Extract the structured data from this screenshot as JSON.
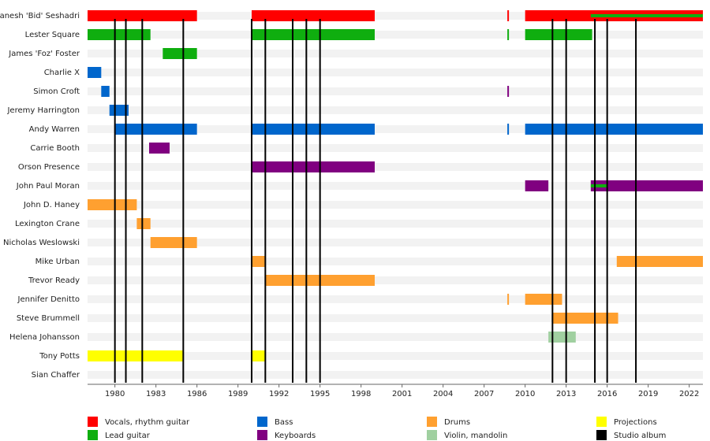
{
  "chart_data": {
    "type": "timeline",
    "categories": [
      "Ganesh 'Bid' Seshadri",
      "Lester Square",
      "James 'Foz' Foster",
      "Charlie X",
      "Simon Croft",
      "Jeremy Harrington",
      "Andy Warren",
      "Carrie Booth",
      "Orson Presence",
      "John Paul Moran",
      "John D. Haney",
      "Lexington Crane",
      "Nicholas Weslowski",
      "Mike Urban",
      "Trevor Ready",
      "Jennifer Denitto",
      "Steve Brummell",
      "Helena Johansson",
      "Tony Potts",
      "Sian Chaffer"
    ],
    "xlim": [
      1978,
      2023
    ],
    "xticks": [
      1980,
      1983,
      1986,
      1989,
      1992,
      1995,
      1998,
      2001,
      2004,
      2007,
      2010,
      2013,
      2016,
      2019,
      2022
    ],
    "series": [
      {
        "name": "Vocals, rhythm guitar",
        "color": "#ff0000",
        "values": [
          [
            [
              1978,
              1986
            ],
            [
              1990,
              1999
            ],
            [
              2008.7,
              2008.8
            ],
            [
              2010,
              2023
            ]
          ],
          null,
          null,
          null,
          null,
          null,
          null,
          null,
          null,
          null,
          null,
          null,
          null,
          null,
          null,
          null,
          null,
          null,
          null,
          null
        ]
      },
      {
        "name": "Lead guitar",
        "color": "#0fae0f",
        "values": [
          [
            [
              2014.8,
              2023
            ]
          ],
          [
            [
              1978,
              1982.6
            ],
            [
              1990,
              1999
            ],
            [
              2008.7,
              2008.8
            ],
            [
              2010,
              2014.9
            ]
          ],
          [
            [
              1983.5,
              1986
            ]
          ],
          null,
          null,
          null,
          null,
          null,
          null,
          [
            [
              2014.8,
              2016
            ]
          ],
          null,
          null,
          null,
          null,
          null,
          null,
          null,
          null,
          null,
          null
        ]
      },
      {
        "name": "Bass",
        "color": "#0066cc",
        "values": [
          null,
          null,
          null,
          [
            [
              1978,
              1979
            ]
          ],
          [
            [
              1979,
              1979.6
            ]
          ],
          [
            [
              1979.6,
              1981
            ]
          ],
          [
            [
              1980,
              1986
            ],
            [
              1990,
              1999
            ],
            [
              2008.7,
              2008.8
            ],
            [
              2010,
              2023
            ]
          ],
          null,
          null,
          null,
          null,
          null,
          null,
          null,
          null,
          null,
          null,
          null,
          null,
          null
        ]
      },
      {
        "name": "Keyboards",
        "color": "#800080",
        "values": [
          null,
          null,
          null,
          null,
          [
            [
              2008.7,
              2008.8
            ]
          ],
          null,
          null,
          [
            [
              1982.5,
              1984
            ]
          ],
          [
            [
              1990,
              1999
            ]
          ],
          [
            [
              2010,
              2011.7
            ],
            [
              2014.8,
              2023
            ]
          ],
          null,
          null,
          null,
          null,
          null,
          null,
          null,
          null,
          null,
          null
        ]
      },
      {
        "name": "Drums",
        "color": "#ffa030",
        "values": [
          null,
          null,
          null,
          null,
          null,
          null,
          null,
          null,
          null,
          null,
          [
            [
              1978,
              1981.6
            ]
          ],
          [
            [
              1981.6,
              1982.6
            ]
          ],
          [
            [
              1982.6,
              1986
            ]
          ],
          [
            [
              1990,
              1991
            ],
            [
              2016.7,
              2023
            ]
          ],
          [
            [
              1991,
              1999
            ]
          ],
          [
            [
              2008.7,
              2008.8
            ],
            [
              2010,
              2012.7
            ]
          ],
          [
            [
              2012,
              2016.8
            ]
          ],
          null,
          null,
          null
        ]
      },
      {
        "name": "Violin, mandolin",
        "color": "#a0d0a0",
        "values": [
          null,
          null,
          null,
          null,
          null,
          null,
          null,
          null,
          null,
          null,
          null,
          null,
          null,
          null,
          null,
          null,
          null,
          [
            [
              2011.7,
              2013.7
            ]
          ],
          null,
          null
        ]
      },
      {
        "name": "Projections",
        "color": "#ffff00",
        "values": [
          null,
          null,
          null,
          null,
          null,
          null,
          null,
          null,
          null,
          null,
          null,
          null,
          null,
          null,
          null,
          null,
          null,
          null,
          [
            [
              1978,
              1985
            ],
            [
              1990,
              1991
            ]
          ],
          null
        ]
      }
    ],
    "albums": {
      "name": "Studio album",
      "color": "#000000",
      "values": [
        1980,
        1980.8,
        1982,
        1985,
        1990,
        1991,
        1993,
        1994,
        1995,
        2012,
        2013,
        2015.1,
        2016,
        2018.1
      ]
    }
  }
}
